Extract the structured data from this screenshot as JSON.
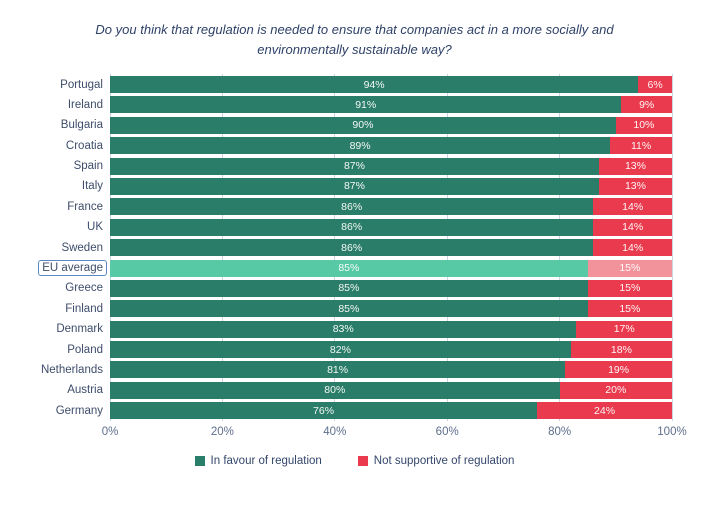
{
  "title": "Do you think that regulation is needed to ensure that companies act in a more socially and environmentally sustainable way?",
  "colors": {
    "favor": "#2a7d68",
    "against": "#ea3a4d",
    "favor_highlight": "#57c9a4",
    "against_highlight": "#f2939c",
    "gridline": "#ccd6e3",
    "country_label": "#3e4d6b",
    "axis_label": "#5e6e8c",
    "title_text": "#2e4168",
    "highlight_border": "#5b87c7"
  },
  "legend": {
    "items": [
      {
        "label": "In favour of regulation",
        "color": "#2a7d68"
      },
      {
        "label": "Not supportive of regulation",
        "color": "#ea3a4d"
      }
    ]
  },
  "chart_data": {
    "type": "bar",
    "orientation": "horizontal",
    "stacked": true,
    "title": "Do you think that regulation is needed to ensure that companies act in a more socially and environmentally sustainable way?",
    "categories": [
      "Portugal",
      "Ireland",
      "Bulgaria",
      "Croatia",
      "Spain",
      "Italy",
      "France",
      "UK",
      "Sweden",
      "EU average",
      "Greece",
      "Finland",
      "Denmark",
      "Poland",
      "Netherlands",
      "Austria",
      "Germany"
    ],
    "series": [
      {
        "name": "In favour of regulation",
        "values": [
          94,
          91,
          90,
          89,
          87,
          87,
          86,
          86,
          86,
          85,
          85,
          85,
          83,
          82,
          81,
          80,
          76
        ]
      },
      {
        "name": "Not supportive of regulation",
        "values": [
          6,
          9,
          10,
          11,
          13,
          13,
          14,
          14,
          14,
          15,
          15,
          15,
          17,
          18,
          19,
          20,
          24
        ]
      }
    ],
    "data_labels": [
      [
        "94%",
        "6%"
      ],
      [
        "91%",
        "9%"
      ],
      [
        "90%",
        "10%"
      ],
      [
        "89%",
        "11%"
      ],
      [
        "87%",
        "13%"
      ],
      [
        "87%",
        "13%"
      ],
      [
        "86%",
        "14%"
      ],
      [
        "86%",
        "14%"
      ],
      [
        "86%",
        "14%"
      ],
      [
        "85%",
        "15%"
      ],
      [
        "85%",
        "15%"
      ],
      [
        "85%",
        "15%"
      ],
      [
        "83%",
        "17%"
      ],
      [
        "82%",
        "18%"
      ],
      [
        "81%",
        "19%"
      ],
      [
        "80%",
        "20%"
      ],
      [
        "76%",
        "24%"
      ]
    ],
    "highlight_category": "EU average",
    "x_ticks": [
      "0%",
      "20%",
      "40%",
      "60%",
      "80%",
      "100%"
    ],
    "x_tick_positions": [
      0,
      20,
      40,
      60,
      80,
      100
    ],
    "xlim": [
      0,
      100
    ],
    "xlabel": "",
    "ylabel": "",
    "grid": "vertical",
    "legend_position": "bottom"
  }
}
